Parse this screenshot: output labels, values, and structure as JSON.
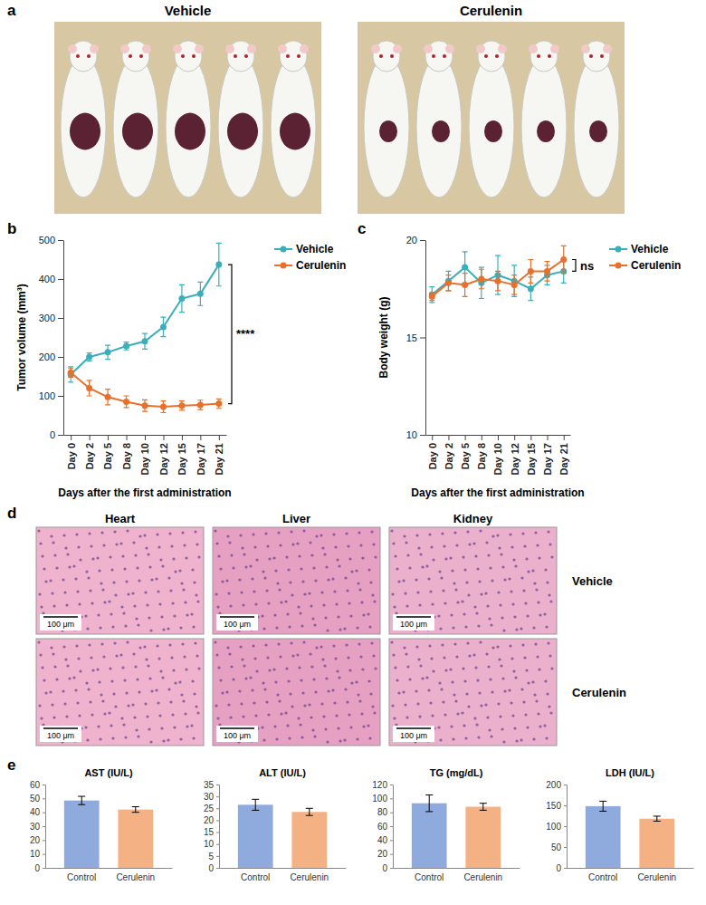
{
  "panels": [
    "a",
    "b",
    "c",
    "d",
    "e"
  ],
  "photos": {
    "groups": [
      "Vehicle",
      "Cerulenin"
    ]
  },
  "histology": {
    "columns": [
      "Heart",
      "Liver",
      "Kidney"
    ],
    "rows": [
      "Vehicle",
      "Cerulenin"
    ],
    "scale_bar": "100 μm"
  },
  "chart_data": [
    {
      "type": "line",
      "xlabel": "Days after the first administration",
      "ylabel": "Tumor volume (mm³)",
      "categories": [
        "Day 0",
        "Day 2",
        "Day 5",
        "Day 8",
        "Day 10",
        "Day 12",
        "Day 15",
        "Day 17",
        "Day 21"
      ],
      "series": [
        {
          "name": "Vehicle",
          "color": "#3aafb9",
          "values": [
            155,
            200,
            212,
            228,
            240,
            277,
            350,
            362,
            437
          ],
          "errors": [
            20,
            10,
            18,
            10,
            20,
            25,
            35,
            30,
            55
          ]
        },
        {
          "name": "Cerulenin",
          "color": "#e8702a",
          "values": [
            160,
            120,
            97,
            85,
            75,
            72,
            75,
            77,
            80
          ],
          "errors": [
            12,
            20,
            20,
            15,
            15,
            15,
            12,
            12,
            12
          ]
        }
      ],
      "ylim": [
        0,
        500
      ],
      "yticks": [
        0,
        100,
        200,
        300,
        400,
        500
      ],
      "grid": false,
      "legend": "right",
      "marker": "circle",
      "annotations": [
        "****"
      ]
    },
    {
      "type": "line",
      "xlabel": "Days after the first administration",
      "ylabel": "Body weight (g)",
      "categories": [
        "Day 0",
        "Day 2",
        "Day 5",
        "Day 8",
        "Day 10",
        "Day 12",
        "Day 15",
        "Day 17",
        "Day 21"
      ],
      "series": [
        {
          "name": "Vehicle",
          "color": "#3aafb9",
          "values": [
            17.2,
            17.9,
            18.6,
            17.8,
            18.2,
            17.9,
            17.5,
            18.2,
            18.4
          ],
          "errors": [
            0.4,
            0.5,
            0.8,
            0.8,
            1.0,
            0.8,
            0.6,
            0.5,
            0.6
          ]
        },
        {
          "name": "Cerulenin",
          "color": "#e8702a",
          "values": [
            17.1,
            17.8,
            17.7,
            18.0,
            17.9,
            17.7,
            18.4,
            18.4,
            19.0
          ],
          "errors": [
            0.2,
            0.4,
            0.6,
            0.5,
            0.5,
            0.5,
            0.6,
            0.5,
            0.7
          ]
        }
      ],
      "ylim": [
        10,
        20
      ],
      "yticks": [
        10,
        15,
        20
      ],
      "grid": false,
      "legend": "right",
      "marker": "circle",
      "annotations": [
        "ns"
      ]
    },
    {
      "type": "bar",
      "title": "AST (IU/L)",
      "categories": [
        "Control",
        "Cerulenin"
      ],
      "values": [
        48.5,
        42
      ],
      "errors": [
        3,
        2
      ],
      "colors": [
        "#8faadc",
        "#f4b183"
      ],
      "ylim": [
        0,
        60
      ],
      "yticks": [
        0,
        10,
        20,
        30,
        40,
        50,
        60
      ],
      "grid": false
    },
    {
      "type": "bar",
      "title": "ALT (IU/L)",
      "categories": [
        "Control",
        "Cerulenin"
      ],
      "values": [
        26.5,
        23.5
      ],
      "errors": [
        2.3,
        1.5
      ],
      "colors": [
        "#8faadc",
        "#f4b183"
      ],
      "ylim": [
        0,
        35
      ],
      "yticks": [
        0,
        5,
        10,
        15,
        20,
        25,
        30,
        35
      ],
      "grid": false
    },
    {
      "type": "bar",
      "title": "TG (mg/dL)",
      "categories": [
        "Control",
        "Cerulenin"
      ],
      "values": [
        93,
        88
      ],
      "errors": [
        12,
        5
      ],
      "colors": [
        "#8faadc",
        "#f4b183"
      ],
      "ylim": [
        0,
        120
      ],
      "yticks": [
        0,
        20,
        40,
        60,
        80,
        100,
        120
      ],
      "grid": false
    },
    {
      "type": "bar",
      "title": "LDH (IU/L)",
      "categories": [
        "Control",
        "Cerulenin"
      ],
      "values": [
        148,
        118
      ],
      "errors": [
        12,
        6
      ],
      "colors": [
        "#8faadc",
        "#f4b183"
      ],
      "ylim": [
        0,
        200
      ],
      "yticks": [
        0,
        50,
        100,
        150,
        200
      ],
      "grid": false
    }
  ]
}
